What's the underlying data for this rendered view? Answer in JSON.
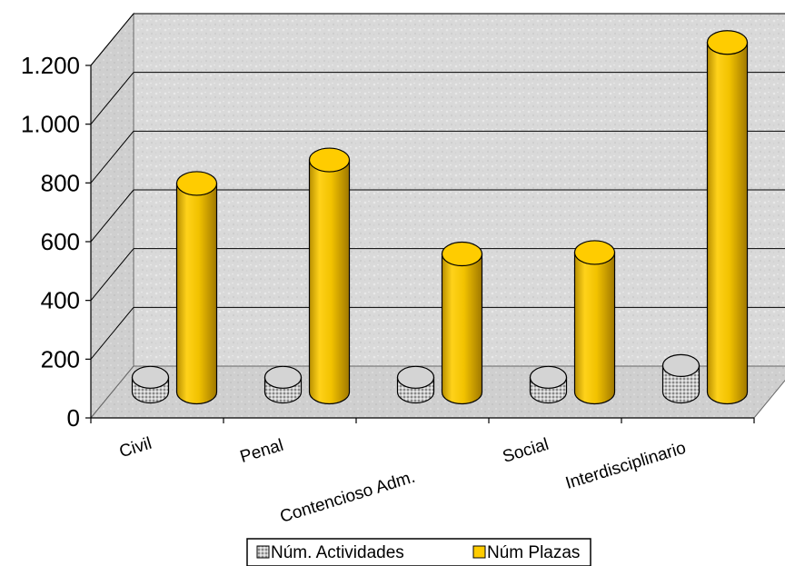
{
  "chart_data": {
    "type": "bar",
    "style": "3d-cylinder",
    "categories": [
      "Civil",
      "Penal",
      "Contencioso Adm.",
      "Social",
      "Interdisciplinario"
    ],
    "series": [
      {
        "name": "Núm. Actividades",
        "values": [
          50,
          50,
          50,
          50,
          90
        ],
        "color": "#bcbcbc",
        "pattern": "dotted-gray"
      },
      {
        "name": "Núm Plazas",
        "values": [
          710,
          790,
          470,
          475,
          1190
        ],
        "color": "#ffcc00"
      }
    ],
    "ylim": [
      0,
      1200
    ],
    "yticks": [
      0,
      200,
      400,
      600,
      800,
      1000,
      1200
    ],
    "ytick_labels": [
      "0",
      "200",
      "400",
      "600",
      "800",
      "1.000",
      "1.200"
    ],
    "grid": true,
    "legend_position": "bottom",
    "title": "",
    "xlabel": "",
    "ylabel": ""
  }
}
